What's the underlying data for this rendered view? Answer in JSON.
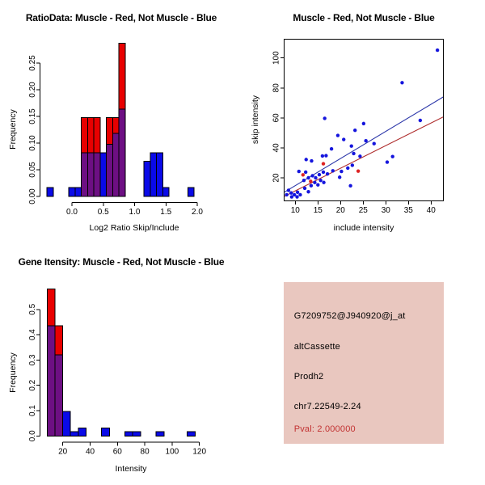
{
  "figure": {
    "background": "#FFFFFF",
    "description_colors": {
      "red": "#E80000",
      "blue": "#0A0AE8",
      "purple": "#6D0F83",
      "scatter_point_blue": "#1515DD",
      "scatter_point_red": "#DD2222",
      "fit_line_blue": "#2A35A8",
      "fit_line_red": "#B03030",
      "info_bg": "#E9C7BF",
      "pval_red": "#C23232",
      "axis_black": "#000000"
    }
  },
  "chart_data": [
    {
      "type": "bar",
      "subtype": "overlaid-histogram",
      "title": "RatioData: Muscle - Red, Not Muscle - Blue",
      "xlabel": "Log2 Ratio Skip/Include",
      "ylabel": "Frequency",
      "legend_note": "red = Muscle, blue = Not Muscle, purple = overlap",
      "xlim": [
        -0.5,
        2.1
      ],
      "ylim": [
        0,
        0.29
      ],
      "grid": false,
      "bin_width": 0.1,
      "xticks": [
        {
          "v": 0.0,
          "label": "0.0"
        },
        {
          "v": 0.5,
          "label": "0.5"
        },
        {
          "v": 1.0,
          "label": "1.0"
        },
        {
          "v": 1.5,
          "label": "1.5"
        },
        {
          "v": 2.0,
          "label": "2.0"
        }
      ],
      "yticks": [
        {
          "v": 0.0,
          "label": "0.00"
        },
        {
          "v": 0.05,
          "label": "0.05"
        },
        {
          "v": 0.1,
          "label": "0.10"
        },
        {
          "v": 0.15,
          "label": "0.15"
        },
        {
          "v": 0.2,
          "label": "0.20"
        },
        {
          "v": 0.25,
          "label": "0.25"
        }
      ],
      "bars": [
        {
          "x": -0.4,
          "blue": 0.0164
        },
        {
          "x": -0.05,
          "blue": 0.0164
        },
        {
          "x": 0.05,
          "blue": 0.0164
        },
        {
          "x": 0.15,
          "purple": 0.082,
          "red": 0.1475
        },
        {
          "x": 0.25,
          "purple": 0.082,
          "red": 0.1475
        },
        {
          "x": 0.35,
          "purple": 0.082,
          "red": 0.1475
        },
        {
          "x": 0.45,
          "blue": 0.082
        },
        {
          "x": 0.55,
          "purple": 0.098,
          "red": 0.1475
        },
        {
          "x": 0.65,
          "purple": 0.118,
          "red": 0.1475
        },
        {
          "x": 0.75,
          "purple": 0.164,
          "red": 0.2869
        },
        {
          "x": 1.15,
          "blue": 0.066
        },
        {
          "x": 1.25,
          "blue": 0.082
        },
        {
          "x": 1.35,
          "blue": 0.082
        },
        {
          "x": 1.45,
          "blue": 0.0164
        },
        {
          "x": 1.85,
          "blue": 0.0164
        }
      ]
    },
    {
      "type": "scatter",
      "title": "Muscle - Red, Not Muscle - Blue",
      "xlabel": "include intensity",
      "ylabel": "skip intensity",
      "xlim": [
        7.6,
        42.7
      ],
      "ylim": [
        4.5,
        112.4
      ],
      "grid": false,
      "xticks": [
        {
          "v": 10,
          "label": "10"
        },
        {
          "v": 15,
          "label": "15"
        },
        {
          "v": 20,
          "label": "20"
        },
        {
          "v": 25,
          "label": "25"
        },
        {
          "v": 30,
          "label": "30"
        },
        {
          "v": 35,
          "label": "35"
        },
        {
          "v": 40,
          "label": "40"
        }
      ],
      "yticks": [
        {
          "v": 20,
          "label": "20"
        },
        {
          "v": 40,
          "label": "40"
        },
        {
          "v": 60,
          "label": "60"
        },
        {
          "v": 80,
          "label": "80"
        },
        {
          "v": 100,
          "label": "100"
        }
      ],
      "series": [
        {
          "name": "Not Muscle (blue)",
          "points": [
            [
              41.4,
              105.2
            ],
            [
              33.6,
              83.5
            ],
            [
              37.6,
              58.3
            ],
            [
              16.5,
              59.7
            ],
            [
              25.1,
              56.2
            ],
            [
              23.2,
              51.7
            ],
            [
              19.4,
              48.3
            ],
            [
              20.7,
              45.6
            ],
            [
              25.6,
              44.7
            ],
            [
              22.4,
              41.2
            ],
            [
              27.4,
              42.8
            ],
            [
              18.0,
              39.3
            ],
            [
              22.9,
              36.2
            ],
            [
              24.3,
              34.4
            ],
            [
              12.4,
              32.2
            ],
            [
              16.0,
              34.6
            ],
            [
              16.8,
              34.8
            ],
            [
              13.6,
              31.3
            ],
            [
              30.3,
              30.5
            ],
            [
              31.5,
              34.2
            ],
            [
              22.6,
              28.4
            ],
            [
              21.6,
              26.5
            ],
            [
              22.2,
              14.7
            ],
            [
              8.5,
              11.7
            ],
            [
              9.1,
              9.9
            ],
            [
              9.8,
              8.7
            ],
            [
              8.1,
              8.7
            ],
            [
              10.5,
              10.4
            ],
            [
              11.1,
              8.7
            ],
            [
              10.4,
              7.3
            ],
            [
              9.2,
              7.3
            ],
            [
              12.1,
              13.0
            ],
            [
              12.9,
              10.7
            ],
            [
              13.5,
              14.8
            ],
            [
              14.3,
              16.9
            ],
            [
              15.0,
              15.3
            ],
            [
              15.6,
              18.3
            ],
            [
              16.3,
              16.9
            ],
            [
              14.5,
              20.0
            ],
            [
              15.3,
              22.1
            ],
            [
              13.8,
              21.4
            ],
            [
              12.9,
              20.0
            ],
            [
              11.9,
              18.3
            ],
            [
              10.8,
              24.3
            ],
            [
              12.3,
              23.8
            ],
            [
              16.2,
              23.8
            ],
            [
              17.1,
              22.6
            ],
            [
              18.3,
              24.7
            ],
            [
              19.8,
              20.4
            ],
            [
              20.2,
              24.3
            ]
          ]
        },
        {
          "name": "Muscle (red)",
          "points": [
            [
              11.7,
              22.0
            ],
            [
              13.4,
              17.7
            ],
            [
              16.2,
              29.4
            ],
            [
              23.9,
              24.5
            ]
          ]
        }
      ],
      "fit_lines": [
        {
          "name": "blue-fit",
          "slope": 1.81,
          "intercept": -3.3
        },
        {
          "name": "red-fit",
          "slope": 1.51,
          "intercept": -3.8
        }
      ]
    },
    {
      "type": "bar",
      "subtype": "overlaid-histogram",
      "title": "Gene Itensity: Muscle - Red, Not Muscle - Blue",
      "xlabel": "Intensity",
      "ylabel": "Frequency",
      "legend_note": "red = Muscle, blue = Not Muscle, purple = overlap",
      "xlim": [
        5,
        125
      ],
      "ylim": [
        0,
        0.59
      ],
      "grid": false,
      "bin_width": 5.7,
      "xticks": [
        {
          "v": 20,
          "label": "20"
        },
        {
          "v": 40,
          "label": "40"
        },
        {
          "v": 60,
          "label": "60"
        },
        {
          "v": 80,
          "label": "80"
        },
        {
          "v": 100,
          "label": "100"
        },
        {
          "v": 120,
          "label": "120"
        }
      ],
      "yticks": [
        {
          "v": 0.0,
          "label": "0.0"
        },
        {
          "v": 0.1,
          "label": "0.1"
        },
        {
          "v": 0.2,
          "label": "0.2"
        },
        {
          "v": 0.3,
          "label": "0.3"
        },
        {
          "v": 0.4,
          "label": "0.4"
        },
        {
          "v": 0.5,
          "label": "0.5"
        }
      ],
      "bars": [
        {
          "x": 8.5,
          "purple": 0.435,
          "red": 0.5806
        },
        {
          "x": 14.2,
          "purple": 0.32,
          "red": 0.435
        },
        {
          "x": 19.9,
          "blue": 0.097
        },
        {
          "x": 25.6,
          "blue": 0.0164
        },
        {
          "x": 31.3,
          "blue": 0.0306
        },
        {
          "x": 48.4,
          "blue": 0.0306
        },
        {
          "x": 65.5,
          "blue": 0.0164
        },
        {
          "x": 71.2,
          "blue": 0.0164
        },
        {
          "x": 88.3,
          "blue": 0.0164
        },
        {
          "x": 111.1,
          "blue": 0.0164
        }
      ]
    }
  ],
  "info_panel": {
    "background": "#E9C7BF",
    "lines": [
      {
        "text": "G7209752@J940920@j_at",
        "color": "#000000"
      },
      {
        "text": "altCassette",
        "color": "#000000"
      },
      {
        "text": "Prodh2",
        "color": "#000000"
      },
      {
        "text": "chr7.22549-2.24",
        "color": "#000000"
      },
      {
        "text": "Pval: 2.000000",
        "color": "#C23232"
      }
    ]
  }
}
